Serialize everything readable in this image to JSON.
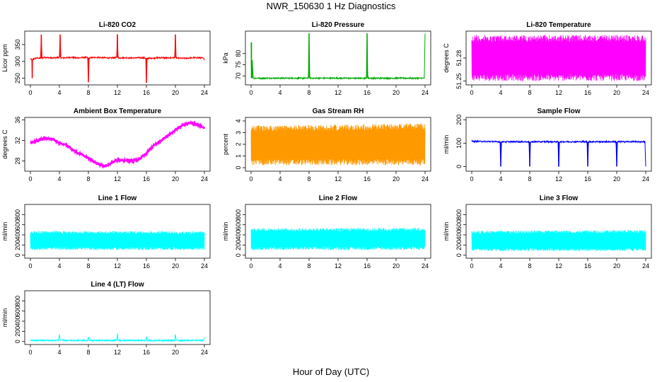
{
  "title": "NWR_150630  1 Hz Diagnostics",
  "xlabel": "Hour of Day (UTC)",
  "chart_data": [
    {
      "type": "line",
      "title": "Li-820 CO2",
      "ylabel": "Licor ppm",
      "color": "#ff0000",
      "xlim": [
        0,
        24
      ],
      "ylim": [
        230,
        390
      ],
      "xticks": [
        0,
        4,
        8,
        12,
        16,
        20,
        24
      ],
      "yticks": [
        250,
        300,
        350
      ],
      "series": [
        {
          "x": [
            0,
            0.2,
            0.25,
            0.3,
            0.5,
            1,
            1.4,
            1.5,
            1.6,
            2,
            2.5,
            3,
            3.5,
            4,
            4.1,
            4.2,
            5,
            5.5,
            6,
            6.5,
            7,
            7.5,
            7.9,
            8,
            8.1,
            8.5,
            9,
            10,
            11,
            11.9,
            12,
            12.1,
            13,
            14,
            15,
            15.9,
            16,
            16.1,
            17,
            18,
            19,
            19.9,
            20,
            20.1,
            21,
            22,
            23,
            23.8,
            24
          ],
          "y": [
            307,
            305,
            250,
            306,
            308,
            310,
            309,
            380,
            310,
            312,
            311,
            310,
            311,
            312,
            380,
            310,
            311,
            312,
            311,
            310,
            311,
            312,
            311,
            238,
            310,
            311,
            312,
            311,
            310,
            311,
            380,
            310,
            311,
            310,
            311,
            310,
            236,
            309,
            310,
            311,
            310,
            311,
            380,
            310,
            309,
            310,
            311,
            310,
            305
          ]
        }
      ]
    },
    {
      "type": "line",
      "title": "Li-820 Pressure",
      "ylabel": "kPa",
      "color": "#00aa00",
      "xlim": [
        0,
        24
      ],
      "ylim": [
        66,
        90
      ],
      "xticks": [
        0,
        4,
        8,
        12,
        16,
        20,
        24
      ],
      "yticks": [
        70,
        75,
        80
      ],
      "series": [
        {
          "x": [
            0,
            0.05,
            0.15,
            0.3,
            2,
            4,
            6,
            7.9,
            8,
            8.1,
            10,
            12,
            14,
            15.9,
            16,
            16.1,
            18,
            20,
            22,
            23.9,
            24
          ],
          "y": [
            85,
            69,
            77,
            69,
            69,
            69,
            69,
            69,
            89,
            69,
            69,
            69,
            69,
            69,
            89,
            69,
            69,
            69,
            69,
            69,
            89
          ]
        }
      ]
    },
    {
      "type": "line",
      "title": "Li-820 Temperature",
      "ylabel": "degrees C",
      "color": "#ff00ff",
      "xlim": [
        0,
        24
      ],
      "ylim": [
        51.245,
        51.315
      ],
      "xticks": [
        0,
        4,
        8,
        12,
        16,
        20,
        24
      ],
      "yticks": [
        51.25,
        51.28
      ],
      "series": [
        {
          "x": [
            0,
            24
          ],
          "y_min": [
            51.25,
            51.25
          ],
          "y_max": [
            51.31,
            51.31
          ]
        }
      ]
    },
    {
      "type": "line",
      "title": "Ambient Box Temperature",
      "ylabel": "degrees C",
      "color": "#ff00ff",
      "xlim": [
        0,
        24
      ],
      "ylim": [
        26,
        36.5
      ],
      "xticks": [
        0,
        4,
        8,
        12,
        16,
        20,
        24
      ],
      "yticks": [
        28,
        32,
        36
      ],
      "series": [
        {
          "x": [
            0,
            1,
            2,
            3,
            4,
            5,
            6,
            7,
            8,
            9,
            10,
            10.5,
            11,
            12,
            13,
            14,
            15,
            16,
            17,
            18,
            19,
            20,
            21,
            22,
            23,
            24
          ],
          "y": [
            31.5,
            32.0,
            32.4,
            32.3,
            31.5,
            31.0,
            30.0,
            29.3,
            28.5,
            27.6,
            27.0,
            27.0,
            27.5,
            28.2,
            28.1,
            28.0,
            28.3,
            29.5,
            31.0,
            32.0,
            33.0,
            34.0,
            35.0,
            35.5,
            35.0,
            34.5
          ]
        }
      ]
    },
    {
      "type": "line",
      "title": "Gas Stream RH",
      "ylabel": "percent",
      "color": "#ff9900",
      "xlim": [
        0,
        24
      ],
      "ylim": [
        -0.3,
        4.3
      ],
      "xticks": [
        0,
        4,
        8,
        12,
        16,
        20,
        24
      ],
      "yticks": [
        0,
        1,
        2,
        3,
        4
      ],
      "series": [
        {
          "x": [
            0,
            24
          ],
          "y_min": [
            0.2,
            0.2
          ],
          "y_max": [
            3.6,
            3.8
          ]
        }
      ]
    },
    {
      "type": "line",
      "title": "Sample Flow",
      "ylabel": "ml/min",
      "color": "#0000ff",
      "xlim": [
        0,
        24
      ],
      "ylim": [
        -20,
        210
      ],
      "xticks": [
        0,
        4,
        8,
        12,
        16,
        20,
        24
      ],
      "yticks": [
        0,
        100,
        200
      ],
      "series": [
        {
          "x": [
            0,
            3.9,
            4,
            4.1,
            7.9,
            8,
            8.1,
            11.9,
            12,
            12.1,
            15.9,
            16,
            16.1,
            19.9,
            20,
            20.1,
            23.9,
            24
          ],
          "y": [
            108,
            106,
            0,
            106,
            106,
            0,
            106,
            106,
            0,
            106,
            106,
            0,
            106,
            106,
            0,
            106,
            106,
            0
          ]
        }
      ]
    },
    {
      "type": "line",
      "title": "Line 1 Flow",
      "ylabel": "ml/min",
      "color": "#00ffff",
      "xlim": [
        0,
        24
      ],
      "ylim": [
        -60,
        1000
      ],
      "xticks": [
        0,
        4,
        8,
        12,
        16,
        20,
        24
      ],
      "yticks": [
        0,
        200,
        400,
        600,
        800
      ],
      "series": [
        {
          "x": [
            0,
            24
          ],
          "y_min": [
            100,
            100
          ],
          "y_max": [
            480,
            470
          ]
        }
      ]
    },
    {
      "type": "line",
      "title": "Line 2 Flow",
      "ylabel": "ml/min",
      "color": "#00ffff",
      "xlim": [
        0,
        24
      ],
      "ylim": [
        -60,
        1000
      ],
      "xticks": [
        0,
        4,
        8,
        12,
        16,
        20,
        24
      ],
      "yticks": [
        0,
        200,
        400,
        600,
        800
      ],
      "series": [
        {
          "x": [
            0,
            24
          ],
          "y_min": [
            100,
            100
          ],
          "y_max": [
            530,
            540
          ]
        }
      ]
    },
    {
      "type": "line",
      "title": "Line 3 Flow",
      "ylabel": "ml/min",
      "color": "#00ffff",
      "xlim": [
        0,
        24
      ],
      "ylim": [
        -60,
        1000
      ],
      "xticks": [
        0,
        4,
        8,
        12,
        16,
        20,
        24
      ],
      "yticks": [
        0,
        200,
        400,
        600,
        800
      ],
      "series": [
        {
          "x": [
            0,
            24
          ],
          "y_min": [
            80,
            80
          ],
          "y_max": [
            480,
            500
          ]
        }
      ]
    },
    {
      "type": "line",
      "title": "Line 4 (LT) Flow",
      "ylabel": "ml/min",
      "color": "#00ffff",
      "xlim": [
        0,
        24
      ],
      "ylim": [
        -60,
        1000
      ],
      "xticks": [
        0,
        4,
        8,
        12,
        16,
        20,
        24
      ],
      "yticks": [
        0,
        200,
        400,
        600,
        800
      ],
      "series": [
        {
          "x": [
            0,
            3.9,
            4,
            4.1,
            7.9,
            8,
            8.1,
            11.9,
            12,
            12.1,
            15.9,
            16,
            16.1,
            19.9,
            20,
            20.1,
            23.9,
            24
          ],
          "y": [
            20,
            20,
            150,
            20,
            20,
            90,
            20,
            20,
            150,
            20,
            20,
            90,
            20,
            20,
            160,
            20,
            20,
            90
          ]
        }
      ]
    }
  ]
}
